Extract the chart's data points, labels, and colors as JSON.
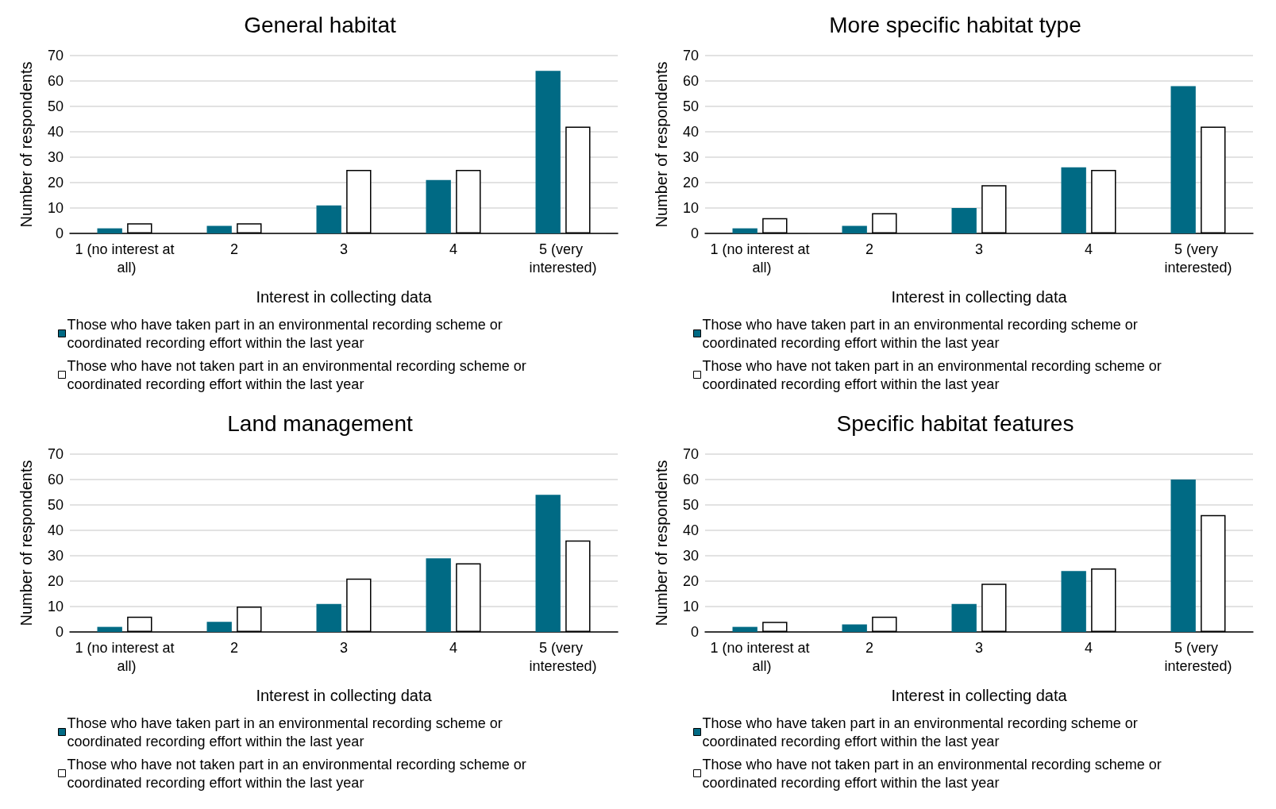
{
  "chart_data": [
    {
      "type": "bar",
      "title": "General habitat",
      "xlabel": "Interest in collecting data",
      "ylabel": "Number of respondents",
      "categories": [
        "1 (no interest at all)",
        "2",
        "3",
        "4",
        "5 (very interested)"
      ],
      "ylim": [
        0,
        70
      ],
      "yticks": [
        0,
        10,
        20,
        30,
        40,
        50,
        60,
        70
      ],
      "grid": "y",
      "legend": "bottom",
      "series": [
        {
          "name": "Those who have taken part in an environmental recording scheme or coordinated recording effort within the last year",
          "color": "#006a84",
          "values": [
            2,
            3,
            11,
            21,
            64
          ]
        },
        {
          "name": "Those who have not taken part in an environmental recording scheme or coordinated recording effort within the last year",
          "color": "#ffffff",
          "values": [
            4,
            4,
            25,
            25,
            42
          ]
        }
      ]
    },
    {
      "type": "bar",
      "title": "More specific habitat type",
      "xlabel": "Interest in collecting data",
      "ylabel": "Number of respondents",
      "categories": [
        "1 (no interest at all)",
        "2",
        "3",
        "4",
        "5 (very interested)"
      ],
      "ylim": [
        0,
        70
      ],
      "yticks": [
        0,
        10,
        20,
        30,
        40,
        50,
        60,
        70
      ],
      "grid": "y",
      "legend": "bottom",
      "series": [
        {
          "name": "Those who have taken part in an environmental recording scheme or coordinated recording effort within the last year",
          "color": "#006a84",
          "values": [
            2,
            3,
            10,
            26,
            58
          ]
        },
        {
          "name": "Those who have not taken part in an environmental recording scheme or coordinated recording effort within the last year",
          "color": "#ffffff",
          "values": [
            6,
            8,
            19,
            25,
            42
          ]
        }
      ]
    },
    {
      "type": "bar",
      "title": "Land management",
      "xlabel": "Interest in collecting data",
      "ylabel": "Number of respondents",
      "categories": [
        "1 (no interest at all)",
        "2",
        "3",
        "4",
        "5 (very interested)"
      ],
      "ylim": [
        0,
        70
      ],
      "yticks": [
        0,
        10,
        20,
        30,
        40,
        50,
        60,
        70
      ],
      "grid": "y",
      "legend": "bottom",
      "series": [
        {
          "name": "Those who have taken part in an environmental recording scheme or coordinated recording effort within the last year",
          "color": "#006a84",
          "values": [
            2,
            4,
            11,
            29,
            54
          ]
        },
        {
          "name": "Those who have not taken part in an environmental recording scheme or coordinated recording effort within the last year",
          "color": "#ffffff",
          "values": [
            6,
            10,
            21,
            27,
            36
          ]
        }
      ]
    },
    {
      "type": "bar",
      "title": "Specific habitat features",
      "xlabel": "Interest in collecting data",
      "ylabel": "Number of respondents",
      "categories": [
        "1 (no interest at all)",
        "2",
        "3",
        "4",
        "5 (very interested)"
      ],
      "ylim": [
        0,
        70
      ],
      "yticks": [
        0,
        10,
        20,
        30,
        40,
        50,
        60,
        70
      ],
      "grid": "y",
      "legend": "bottom",
      "series": [
        {
          "name": "Those who have taken part in an environmental recording scheme or coordinated recording effort within the last year",
          "color": "#006a84",
          "values": [
            2,
            3,
            11,
            24,
            60
          ]
        },
        {
          "name": "Those who have not taken part in an environmental recording scheme or coordinated recording effort within the last year",
          "color": "#ffffff",
          "values": [
            4,
            6,
            19,
            25,
            46
          ]
        }
      ]
    }
  ]
}
